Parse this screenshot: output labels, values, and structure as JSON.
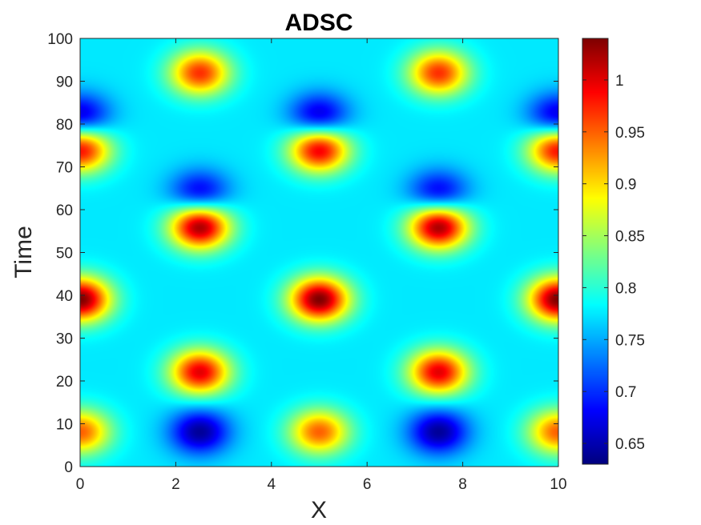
{
  "chart_data": {
    "type": "heatmap",
    "title": "ADSC",
    "xlabel": "X",
    "ylabel": "Time",
    "xlim": [
      0,
      10
    ],
    "ylim": [
      0,
      100
    ],
    "x_ticks": [
      "0",
      "2",
      "4",
      "6",
      "8",
      "10"
    ],
    "y_ticks": [
      "0",
      "10",
      "20",
      "30",
      "40",
      "50",
      "60",
      "70",
      "80",
      "90",
      "100"
    ],
    "colorbar": {
      "colormap": "jet",
      "range": [
        0.63,
        1.04
      ],
      "ticks": [
        "0.65",
        "0.7",
        "0.75",
        "0.8",
        "0.85",
        "0.9",
        "0.95",
        "1"
      ]
    },
    "features": [
      {
        "x": 0,
        "t": 8,
        "v": 0.95
      },
      {
        "x": 5,
        "t": 8,
        "v": 0.95
      },
      {
        "x": 10,
        "t": 8,
        "v": 0.95
      },
      {
        "x": 2.5,
        "t": 8,
        "v": 0.64
      },
      {
        "x": 7.5,
        "t": 8,
        "v": 0.64
      },
      {
        "x": 2.5,
        "t": 22,
        "v": 1.0
      },
      {
        "x": 7.5,
        "t": 22,
        "v": 1.0
      },
      {
        "x": 0,
        "t": 39,
        "v": 1.04
      },
      {
        "x": 5,
        "t": 39,
        "v": 1.04
      },
      {
        "x": 10,
        "t": 39,
        "v": 1.04
      },
      {
        "x": 2.5,
        "t": 56,
        "v": 1.03
      },
      {
        "x": 7.5,
        "t": 56,
        "v": 1.03
      },
      {
        "x": 0,
        "t": 74,
        "v": 0.99
      },
      {
        "x": 5,
        "t": 74,
        "v": 1.0
      },
      {
        "x": 10,
        "t": 74,
        "v": 0.99
      },
      {
        "x": 0,
        "t": 82,
        "v": 0.66
      },
      {
        "x": 5,
        "t": 82,
        "v": 0.66
      },
      {
        "x": 10,
        "t": 82,
        "v": 0.66
      },
      {
        "x": 2.5,
        "t": 64,
        "v": 0.67
      },
      {
        "x": 7.5,
        "t": 64,
        "v": 0.67
      },
      {
        "x": 2.5,
        "t": 92,
        "v": 0.97
      },
      {
        "x": 7.5,
        "t": 92,
        "v": 0.97
      }
    ]
  }
}
